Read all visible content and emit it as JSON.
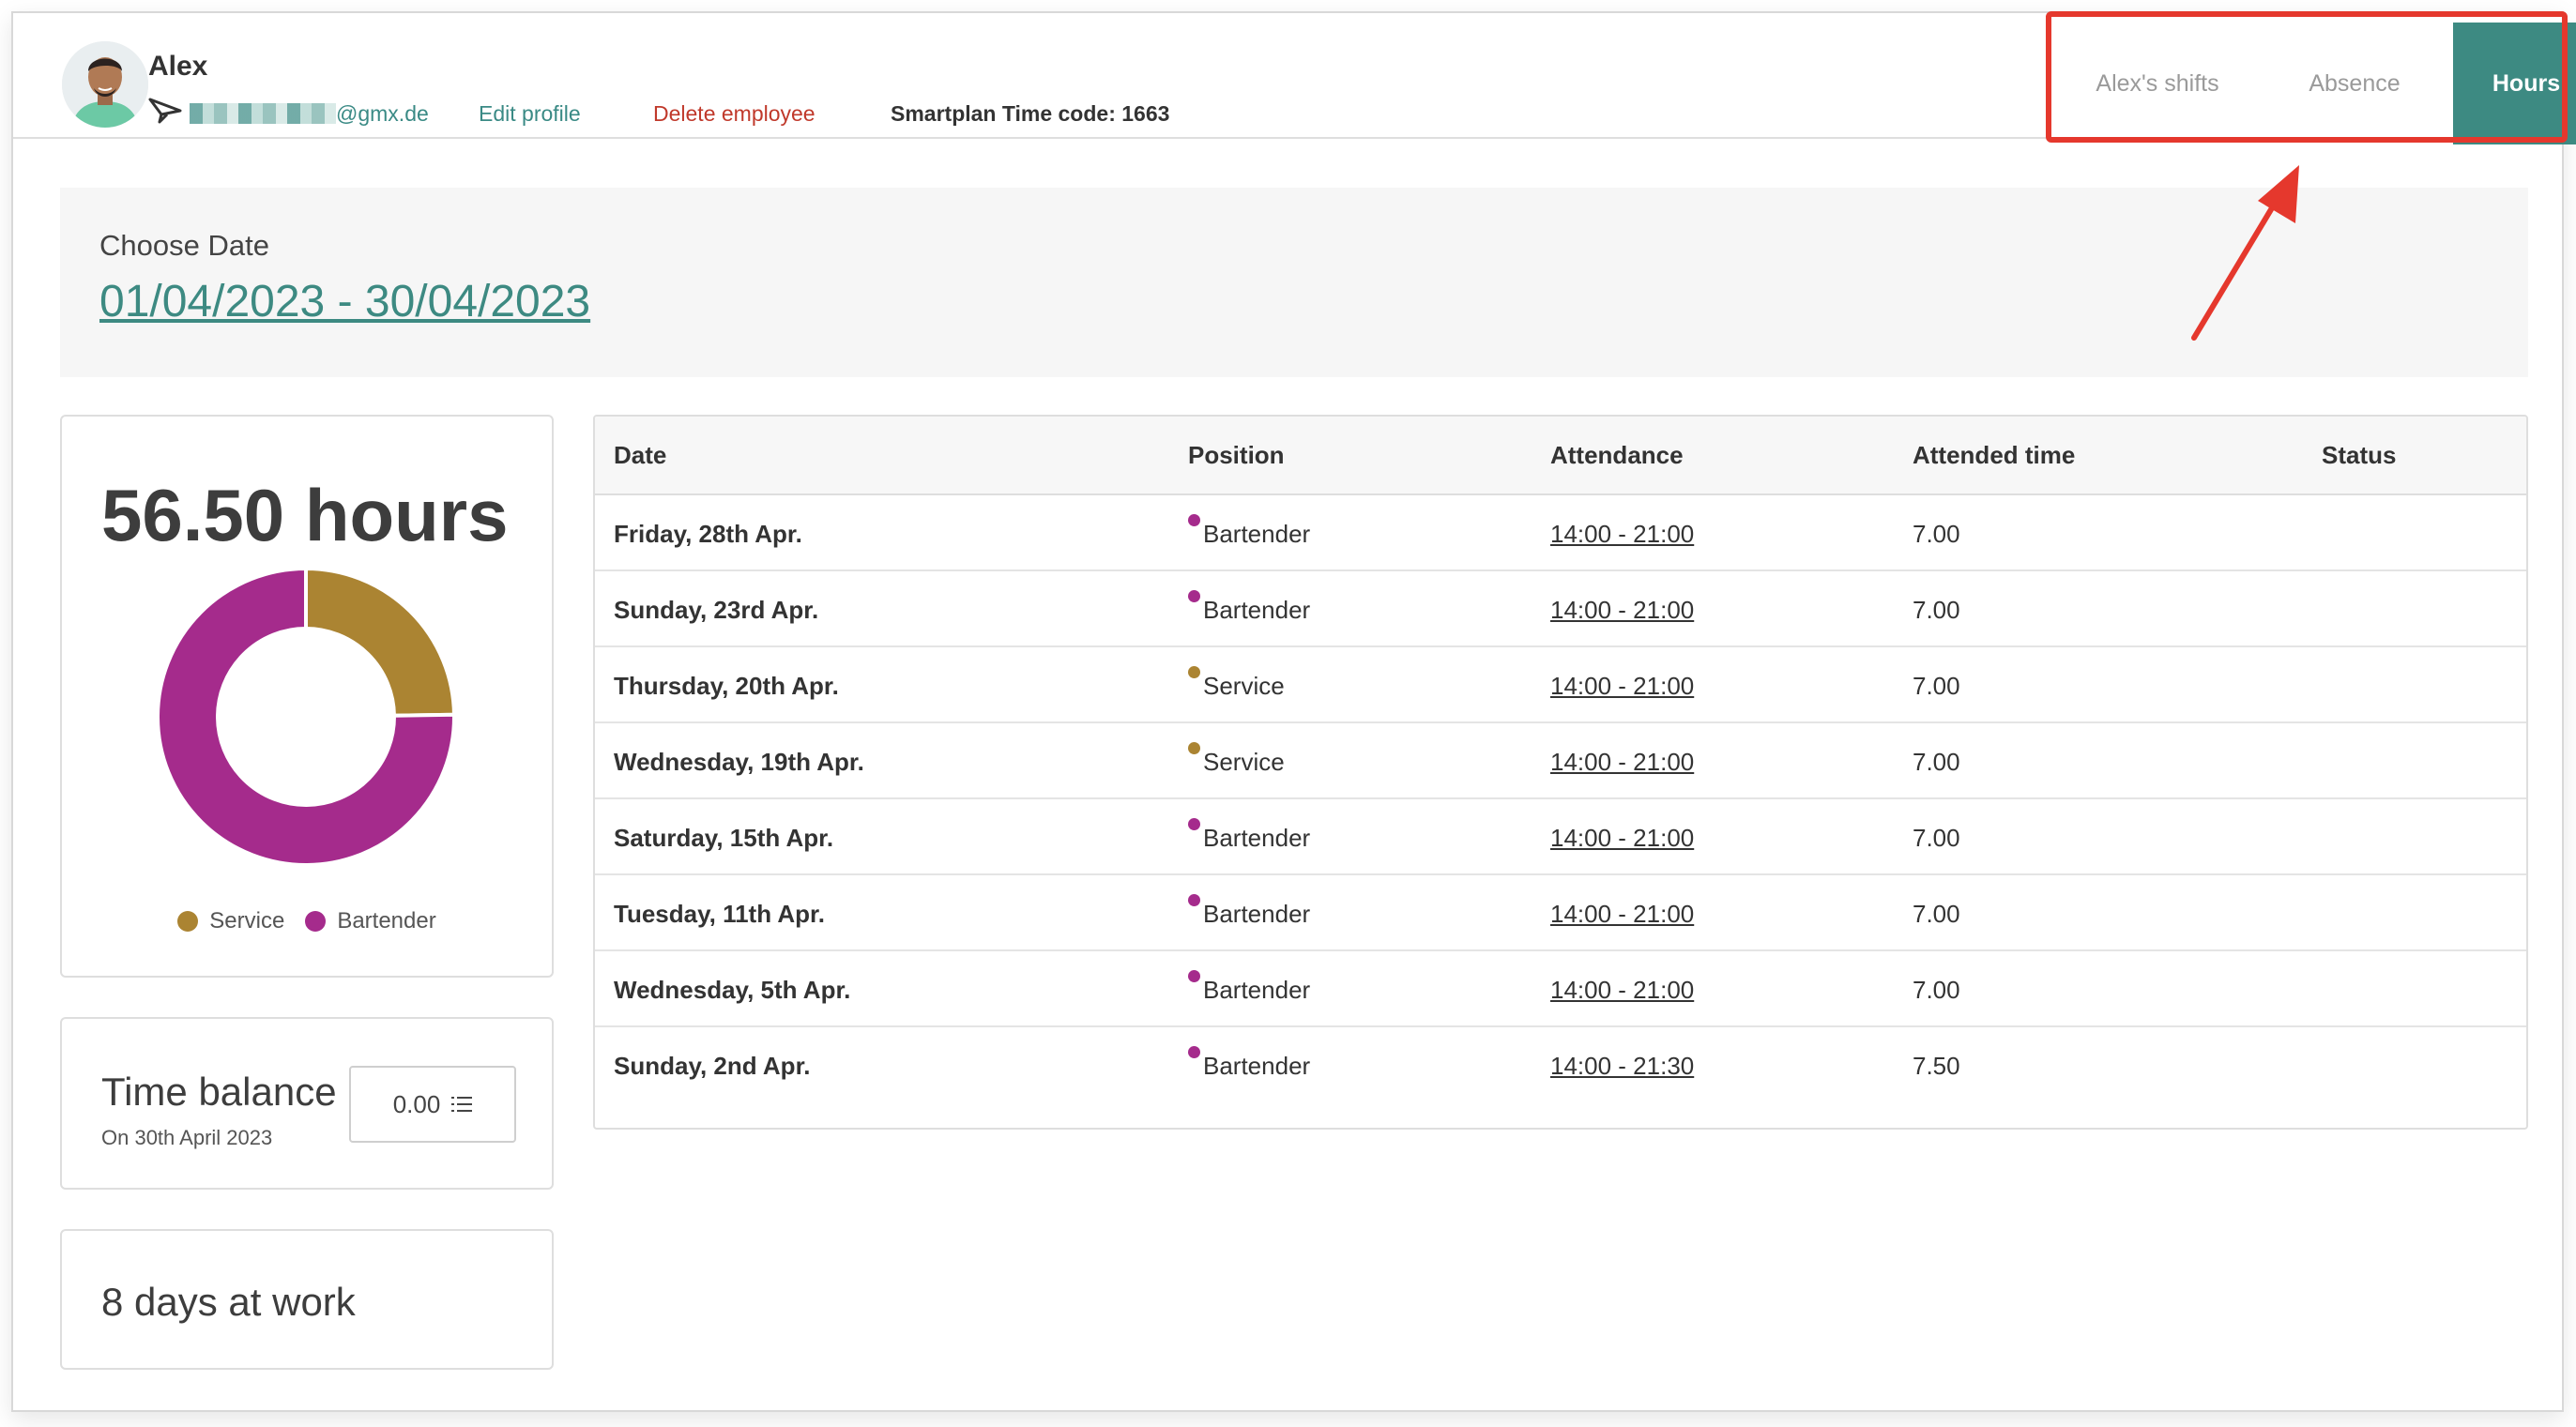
{
  "colors": {
    "accent": "#3d8a82",
    "danger": "#c0392b",
    "service": "#ab8432",
    "bartender": "#a52b8c",
    "highlight": "#e5382d"
  },
  "header": {
    "employee_name": "Alex",
    "email_domain": "@gmx.de",
    "edit_profile": "Edit profile",
    "delete_employee": "Delete employee",
    "time_code": "Smartplan Time code: 1663",
    "tabs": [
      {
        "label": "Alex's shifts",
        "active": false
      },
      {
        "label": "Absence",
        "active": false
      },
      {
        "label": "Hours",
        "active": true
      }
    ]
  },
  "date_picker": {
    "label": "Choose Date",
    "range": "01/04/2023 - 30/04/2023"
  },
  "summary": {
    "total_hours": "56.50 hours",
    "legend": [
      {
        "name": "Service",
        "color": "#ab8432"
      },
      {
        "name": "Bartender",
        "color": "#a52b8c"
      }
    ],
    "time_balance_title": "Time balance",
    "time_balance_date": "On 30th April 2023",
    "time_balance_value": "0.00",
    "days_at_work": "8 days at work"
  },
  "chart_data": {
    "type": "pie",
    "categories": [
      "Service",
      "Bartender"
    ],
    "values": [
      14.0,
      42.5
    ]
  },
  "table": {
    "columns": [
      "Date",
      "Position",
      "Attendance",
      "Attended time",
      "Status"
    ],
    "rows": [
      {
        "date": "Friday, 28th Apr.",
        "position": "Bartender",
        "color": "#a52b8c",
        "attendance": "14:00 - 21:00",
        "time": "7.00",
        "status": ""
      },
      {
        "date": "Sunday, 23rd Apr.",
        "position": "Bartender",
        "color": "#a52b8c",
        "attendance": "14:00 - 21:00",
        "time": "7.00",
        "status": ""
      },
      {
        "date": "Thursday, 20th Apr.",
        "position": "Service",
        "color": "#ab8432",
        "attendance": "14:00 - 21:00",
        "time": "7.00",
        "status": ""
      },
      {
        "date": "Wednesday, 19th Apr.",
        "position": "Service",
        "color": "#ab8432",
        "attendance": "14:00 - 21:00",
        "time": "7.00",
        "status": ""
      },
      {
        "date": "Saturday, 15th Apr.",
        "position": "Bartender",
        "color": "#a52b8c",
        "attendance": "14:00 - 21:00",
        "time": "7.00",
        "status": ""
      },
      {
        "date": "Tuesday, 11th Apr.",
        "position": "Bartender",
        "color": "#a52b8c",
        "attendance": "14:00 - 21:00",
        "time": "7.00",
        "status": ""
      },
      {
        "date": "Wednesday, 5th Apr.",
        "position": "Bartender",
        "color": "#a52b8c",
        "attendance": "14:00 - 21:00",
        "time": "7.00",
        "status": ""
      },
      {
        "date": "Sunday, 2nd Apr.",
        "position": "Bartender",
        "color": "#a52b8c",
        "attendance": "14:00 - 21:30",
        "time": "7.50",
        "status": ""
      }
    ]
  }
}
